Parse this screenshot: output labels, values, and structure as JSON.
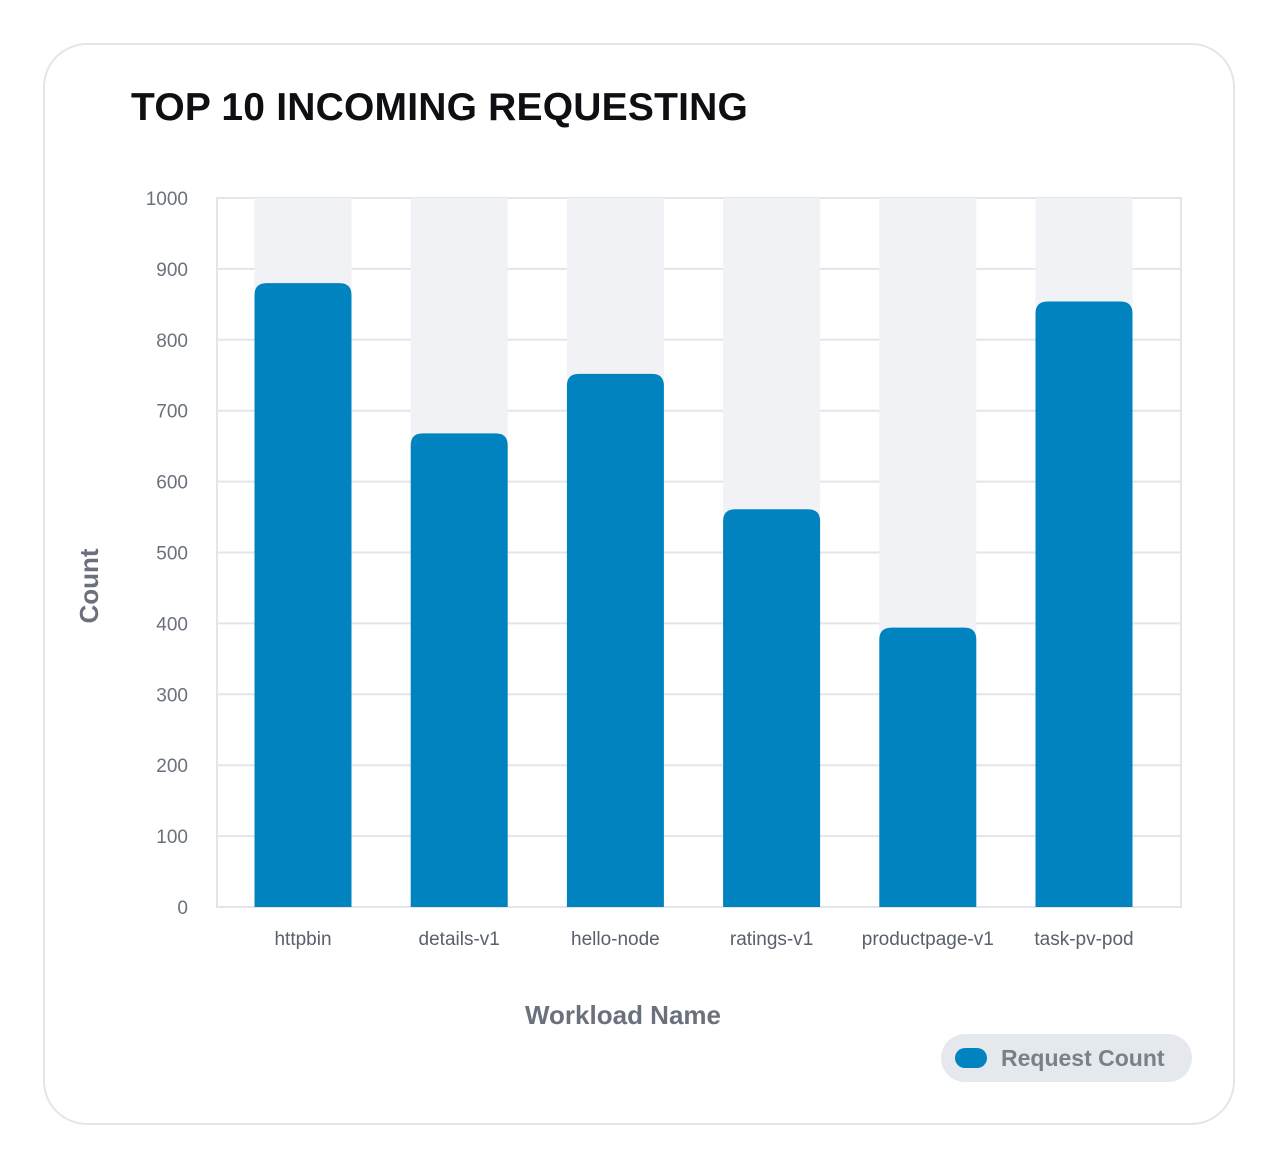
{
  "chart_data": {
    "type": "bar",
    "title": "TOP 10 INCOMING REQUESTING",
    "xlabel": "Workload Name",
    "ylabel": "Count",
    "categories": [
      "httpbin",
      "details-v1",
      "hello-node",
      "ratings-v1",
      "productpage-v1",
      "task-pv-pod"
    ],
    "series": [
      {
        "name": "Request Count",
        "values": [
          880,
          668,
          752,
          561,
          394,
          854
        ]
      }
    ],
    "ylim": [
      0,
      1000
    ],
    "yticks": [
      0,
      100,
      200,
      300,
      400,
      500,
      600,
      700,
      800,
      900,
      1000
    ],
    "grid": true,
    "legend": "bottom-right",
    "bar_color": "#0083bf",
    "track_color": "#f1f2f5"
  }
}
